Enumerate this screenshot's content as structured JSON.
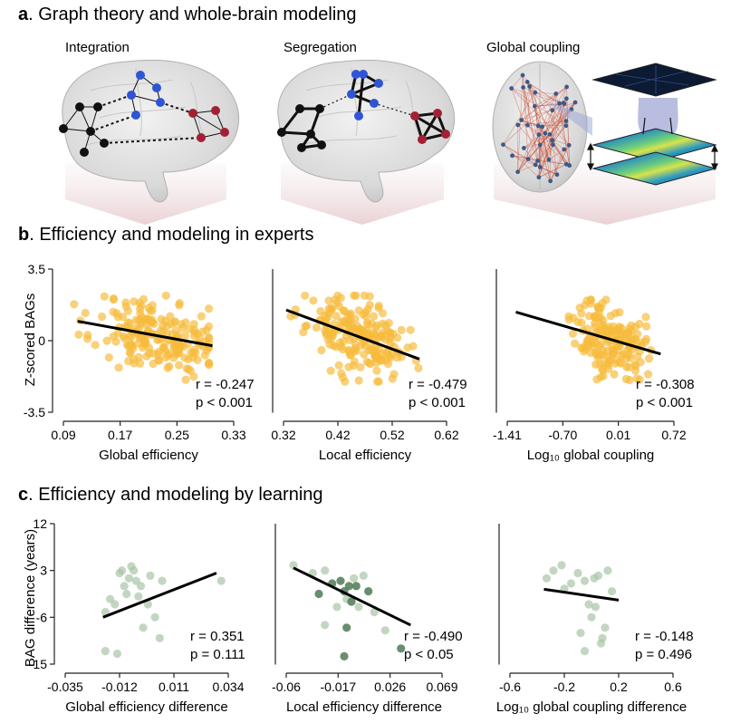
{
  "panel_a": {
    "letter": "a",
    "heading": ". Graph theory and whole-brain modeling",
    "subtitles": [
      "Integration",
      "Segregation",
      "Global coupling"
    ]
  },
  "panel_b": {
    "letter": "b",
    "heading": ". Efficiency and modeling in experts",
    "ylabel": "Z-scored BAGs"
  },
  "panel_c": {
    "letter": "c",
    "heading": ". Efficiency and modeling by learning",
    "ylabel": "BAG difference (years)"
  },
  "colors": {
    "experts_points": "#f6bb3c",
    "learning_light": "#a9c4a7",
    "learning_dark": "#4f7a56",
    "fit_line": "#000000",
    "node_black": "#111111",
    "node_blue": "#2f55d4",
    "node_red": "#a32034"
  },
  "chart_data": [
    {
      "id": "b1",
      "type": "scatter",
      "xlabel": "Global efficiency",
      "ylabel": "Z-scored BAGs",
      "xlim": [
        0.09,
        0.33
      ],
      "ylim": [
        -3.5,
        3.5
      ],
      "xticks": [
        "0.09",
        "0.17",
        "0.25",
        "0.33"
      ],
      "yticks": [
        "3.5",
        "0",
        "-3.5"
      ],
      "stats": [
        "r = -0.247",
        "p < 0.001"
      ],
      "fit": {
        "x": [
          0.11,
          0.3
        ],
        "y": [
          0.95,
          -0.25
        ]
      },
      "n_points": 200,
      "seed": 11,
      "cloud": {
        "x_center": 0.225,
        "x_spread": 0.045,
        "y_center": 0.3,
        "y_spread": 0.9,
        "x_min": 0.105,
        "x_max": 0.295,
        "y_min": -2.1,
        "y_max": 2.2
      }
    },
    {
      "id": "b2",
      "type": "scatter",
      "xlabel": "Local efficiency",
      "ylabel": "Z-scored BAGs",
      "xlim": [
        0.32,
        0.62
      ],
      "ylim": [
        -3.5,
        3.5
      ],
      "xticks": [
        "0.32",
        "0.42",
        "0.52",
        "0.62"
      ],
      "yticks": [],
      "stats": [
        "r = -0.479",
        "p < 0.001"
      ],
      "fit": {
        "x": [
          0.325,
          0.57
        ],
        "y": [
          1.5,
          -0.9
        ]
      },
      "n_points": 200,
      "seed": 23,
      "cloud": {
        "x_center": 0.455,
        "x_spread": 0.045,
        "y_center": 0.35,
        "y_spread": 0.85,
        "x_min": 0.33,
        "x_max": 0.57,
        "y_min": -2.0,
        "y_max": 2.2
      }
    },
    {
      "id": "b3",
      "type": "scatter",
      "xlabel": "Log₁₀ global coupling",
      "ylabel": "Z-scored BAGs",
      "xlim": [
        -1.41,
        0.72
      ],
      "ylim": [
        -3.5,
        3.5
      ],
      "xticks": [
        "-1.41",
        "-0.70",
        "0.01",
        "0.72"
      ],
      "yticks": [],
      "stats": [
        "r = -0.308",
        "p < 0.001"
      ],
      "fit": {
        "x": [
          -1.3,
          0.55
        ],
        "y": [
          1.4,
          -0.65
        ]
      },
      "n_points": 180,
      "seed": 37,
      "cloud": {
        "x_center": -0.1,
        "x_spread": 0.22,
        "y_center": 0.3,
        "y_spread": 0.9,
        "x_min": -1.35,
        "x_max": 0.45,
        "y_min": -2.2,
        "y_max": 2.0
      }
    },
    {
      "id": "c1",
      "type": "scatter",
      "xlabel": "Global efficiency difference",
      "ylabel": "BAG difference (years)",
      "xlim": [
        -0.035,
        0.034
      ],
      "ylim": [
        -15,
        12
      ],
      "xticks": [
        "-0.035",
        "-0.012",
        "0.011",
        "0.034"
      ],
      "yticks": [
        "12",
        "3",
        "-6",
        "-15"
      ],
      "stats": [
        "r = 0.351",
        "p = 0.111"
      ],
      "fit": {
        "x": [
          -0.019,
          0.029
        ],
        "y": [
          -6.0,
          2.5
        ]
      },
      "x": [
        -0.018,
        -0.016,
        -0.014,
        -0.012,
        -0.011,
        -0.01,
        -0.009,
        -0.008,
        -0.007,
        -0.006,
        -0.005,
        -0.004,
        -0.003,
        -0.002,
        0.0,
        0.001,
        0.003,
        0.005,
        0.006,
        0.031,
        -0.018,
        -0.013
      ],
      "y": [
        -5.0,
        -2.5,
        -3.5,
        2.5,
        3.0,
        0.0,
        -1.5,
        1.5,
        3.8,
        3.0,
        1.0,
        -2.0,
        0.0,
        -8.0,
        -3.5,
        2.0,
        -6.0,
        -10.0,
        1.0,
        1.0,
        -12.5,
        -13.0
      ],
      "shade": [
        0,
        0,
        0,
        0,
        0,
        0,
        0,
        0,
        0,
        0,
        0,
        0,
        0,
        0,
        0,
        0,
        0,
        0,
        0,
        0,
        0,
        0
      ]
    },
    {
      "id": "c2",
      "type": "scatter",
      "xlabel": "Local efficiency difference",
      "ylabel": "BAG difference (years)",
      "xlim": [
        -0.06,
        0.069
      ],
      "ylim": [
        -15,
        12
      ],
      "xticks": [
        "-0.06",
        "-0.017",
        "0.026",
        "0.069"
      ],
      "yticks": [],
      "stats": [
        "r = -0.490",
        "p < 0.05"
      ],
      "fit": {
        "x": [
          -0.054,
          0.043
        ],
        "y": [
          3.5,
          -7.5
        ]
      },
      "x": [
        -0.054,
        -0.038,
        -0.033,
        -0.028,
        -0.022,
        -0.018,
        -0.015,
        -0.012,
        -0.01,
        -0.008,
        -0.006,
        -0.004,
        -0.002,
        0.0,
        0.004,
        0.008,
        0.013,
        0.022,
        0.035,
        -0.028,
        -0.012,
        -0.01
      ],
      "y": [
        4.0,
        2.5,
        -1.5,
        3.0,
        0.5,
        -4.0,
        1.0,
        -1.0,
        -2.5,
        0.0,
        -3.0,
        1.5,
        0.0,
        -4.0,
        2.0,
        -1.0,
        -5.0,
        -8.5,
        -12.0,
        -7.5,
        -13.5,
        -8.0
      ],
      "shade": [
        0,
        0,
        1,
        0,
        1,
        0,
        1,
        1,
        0,
        1,
        1,
        0,
        1,
        0,
        0,
        1,
        0,
        0,
        1,
        0,
        1,
        1
      ]
    },
    {
      "id": "c3",
      "type": "scatter",
      "xlabel": "Log₁₀ global coupling difference",
      "ylabel": "BAG difference (years)",
      "xlim": [
        -0.6,
        0.6
      ],
      "ylim": [
        -15,
        12
      ],
      "xticks": [
        "-0.6",
        "-0.2",
        "0.2",
        "0.6"
      ],
      "yticks": [],
      "stats": [
        "r = -0.148",
        "p = 0.496"
      ],
      "fit": {
        "x": [
          -0.35,
          0.2
        ],
        "y": [
          -0.6,
          -2.7
        ]
      },
      "x": [
        -0.33,
        -0.28,
        -0.22,
        -0.2,
        -0.15,
        -0.1,
        -0.05,
        -0.02,
        0.0,
        0.02,
        0.05,
        0.08,
        0.1,
        0.12,
        -0.05,
        0.03,
        -0.08,
        0.07,
        0.15
      ],
      "y": [
        1.5,
        3.0,
        4.0,
        -0.5,
        0.5,
        2.5,
        1.0,
        -3.5,
        -6.0,
        1.5,
        2.0,
        -10.0,
        -8.0,
        3.0,
        -12.5,
        -4.0,
        -9.0,
        -11.0,
        -1.0
      ],
      "shade": [
        0,
        0,
        0,
        0,
        0,
        0,
        0,
        0,
        0,
        0,
        0,
        0,
        0,
        0,
        0,
        0,
        0,
        0,
        0
      ]
    }
  ]
}
